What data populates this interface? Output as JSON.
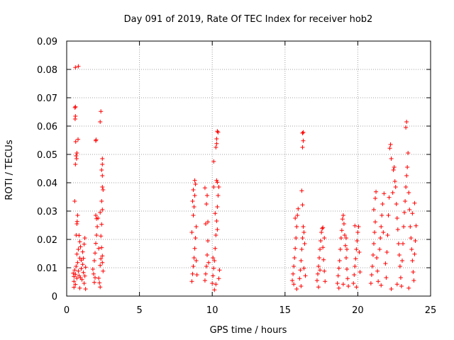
{
  "chart_data": {
    "type": "scatter",
    "title": "Day 091 of 2019, Rate Of TEC Index for receiver hob2",
    "xlabel": "GPS time / hours",
    "ylabel": "ROTI / TECUs",
    "xlim": [
      0,
      25
    ],
    "ylim": [
      0,
      0.09
    ],
    "x_ticks": [
      0,
      5,
      10,
      15,
      20,
      25
    ],
    "y_ticks": [
      0,
      0.01,
      0.02,
      0.03,
      0.04,
      0.05,
      0.06,
      0.07,
      0.08,
      0.09
    ],
    "x_tick_labels": [
      "0",
      "5",
      "10",
      "15",
      "20",
      "25"
    ],
    "y_tick_labels": [
      "0",
      "0.01",
      "0.02",
      "0.03",
      "0.04",
      "0.05",
      "0.06",
      "0.07",
      "0.08",
      "0.09"
    ],
    "grid": true,
    "marker": "+",
    "color": "#ff0000",
    "series": [
      {
        "points": [
          [
            0.45,
            0.0081
          ],
          [
            0.5,
            0.0069
          ],
          [
            0.55,
            0.0092
          ],
          [
            0.6,
            0.0077
          ],
          [
            0.65,
            0.0105
          ],
          [
            0.7,
            0.0063
          ],
          [
            0.75,
            0.0118
          ],
          [
            0.8,
            0.0088
          ],
          [
            0.85,
            0.0072
          ],
          [
            0.9,
            0.0134
          ],
          [
            0.95,
            0.0065
          ],
          [
            1.0,
            0.0097
          ],
          [
            1.05,
            0.0058
          ],
          [
            1.1,
            0.0112
          ],
          [
            1.15,
            0.0083
          ],
          [
            1.2,
            0.0045
          ],
          [
            1.25,
            0.0071
          ],
          [
            1.3,
            0.0102
          ],
          [
            0.5,
            0.0052
          ],
          [
            0.6,
            0.0041
          ],
          [
            0.7,
            0.0148
          ],
          [
            0.8,
            0.0165
          ],
          [
            0.9,
            0.0192
          ],
          [
            1.0,
            0.0127
          ],
          [
            1.1,
            0.0156
          ],
          [
            1.2,
            0.0183
          ],
          [
            1.25,
            0.0205
          ],
          [
            0.65,
            0.0215
          ],
          [
            0.7,
            0.0255
          ],
          [
            0.75,
            0.0285
          ],
          [
            0.55,
            0.0335
          ],
          [
            0.6,
            0.0465
          ],
          [
            0.62,
            0.0545
          ],
          [
            0.65,
            0.0495
          ],
          [
            0.7,
            0.0505
          ],
          [
            0.68,
            0.0485
          ],
          [
            0.58,
            0.0625
          ],
          [
            0.6,
            0.0635
          ],
          [
            0.57,
            0.0665
          ],
          [
            0.6,
            0.0668
          ],
          [
            0.6,
            0.0807
          ],
          [
            0.8,
            0.0811
          ],
          [
            0.78,
            0.0553
          ],
          [
            0.72,
            0.0263
          ],
          [
            0.85,
            0.0214
          ],
          [
            0.95,
            0.0174
          ],
          [
            1.15,
            0.0133
          ],
          [
            0.5,
            0.0031
          ],
          [
            0.9,
            0.0028
          ],
          [
            1.3,
            0.0025
          ],
          [
            1.8,
            0.0095
          ],
          [
            1.85,
            0.0078
          ],
          [
            1.9,
            0.0125
          ],
          [
            1.95,
            0.0152
          ],
          [
            2.0,
            0.0186
          ],
          [
            2.05,
            0.0215
          ],
          [
            2.1,
            0.0245
          ],
          [
            2.15,
            0.0275
          ],
          [
            2.2,
            0.0063
          ],
          [
            2.25,
            0.0047
          ],
          [
            2.3,
            0.0108
          ],
          [
            2.35,
            0.0132
          ],
          [
            2.4,
            0.0171
          ],
          [
            2.45,
            0.0142
          ],
          [
            2.5,
            0.0088
          ],
          [
            2.0,
            0.0285
          ],
          [
            2.05,
            0.0273
          ],
          [
            1.9,
            0.0048
          ],
          [
            2.3,
            0.0032
          ],
          [
            2.35,
            0.0212
          ],
          [
            2.4,
            0.0253
          ],
          [
            2.45,
            0.0305
          ],
          [
            2.4,
            0.0335
          ],
          [
            2.45,
            0.0385
          ],
          [
            2.5,
            0.0375
          ],
          [
            2.45,
            0.0425
          ],
          [
            2.4,
            0.0445
          ],
          [
            2.45,
            0.0465
          ],
          [
            2.45,
            0.0485
          ],
          [
            2.3,
            0.0615
          ],
          [
            2.35,
            0.0652
          ],
          [
            2.0,
            0.0548
          ],
          [
            2.02,
            0.0552
          ],
          [
            2.3,
            0.0295
          ],
          [
            2.2,
            0.0168
          ],
          [
            2.45,
            0.0118
          ],
          [
            1.95,
            0.0065
          ],
          [
            8.6,
            0.0052
          ],
          [
            8.65,
            0.0078
          ],
          [
            8.7,
            0.0105
          ],
          [
            8.75,
            0.0135
          ],
          [
            8.8,
            0.0168
          ],
          [
            8.85,
            0.0205
          ],
          [
            8.9,
            0.0245
          ],
          [
            8.7,
            0.0285
          ],
          [
            8.75,
            0.0315
          ],
          [
            8.8,
            0.0355
          ],
          [
            8.85,
            0.0395
          ],
          [
            8.7,
            0.0375
          ],
          [
            8.8,
            0.0408
          ],
          [
            8.65,
            0.0335
          ],
          [
            8.9,
            0.0125
          ],
          [
            8.95,
            0.0075
          ],
          [
            8.6,
            0.0225
          ],
          [
            9.5,
            0.0055
          ],
          [
            9.55,
            0.0078
          ],
          [
            9.6,
            0.0105
          ],
          [
            9.65,
            0.0145
          ],
          [
            9.7,
            0.0195
          ],
          [
            9.55,
            0.0255
          ],
          [
            9.6,
            0.0325
          ],
          [
            9.65,
            0.0355
          ],
          [
            9.5,
            0.0382
          ],
          [
            9.7,
            0.0262
          ],
          [
            9.75,
            0.0118
          ],
          [
            10.0,
            0.0045
          ],
          [
            10.05,
            0.0072
          ],
          [
            10.1,
            0.0098
          ],
          [
            10.15,
            0.0125
          ],
          [
            10.2,
            0.0168
          ],
          [
            10.25,
            0.0215
          ],
          [
            10.3,
            0.0265
          ],
          [
            10.35,
            0.0315
          ],
          [
            10.4,
            0.0355
          ],
          [
            10.45,
            0.0385
          ],
          [
            10.3,
            0.0408
          ],
          [
            10.35,
            0.0402
          ],
          [
            10.1,
            0.0475
          ],
          [
            10.25,
            0.0525
          ],
          [
            10.3,
            0.0555
          ],
          [
            10.35,
            0.0582
          ],
          [
            10.4,
            0.0578
          ],
          [
            10.3,
            0.0538
          ],
          [
            10.1,
            0.0385
          ],
          [
            10.2,
            0.0292
          ],
          [
            10.25,
            0.0042
          ],
          [
            10.45,
            0.0062
          ],
          [
            10.15,
            0.0022
          ],
          [
            10.5,
            0.0092
          ],
          [
            10.05,
            0.0135
          ],
          [
            10.35,
            0.0235
          ],
          [
            15.5,
            0.0055
          ],
          [
            15.55,
            0.0078
          ],
          [
            15.6,
            0.0105
          ],
          [
            15.65,
            0.0135
          ],
          [
            15.7,
            0.0168
          ],
          [
            15.75,
            0.0205
          ],
          [
            15.8,
            0.0245
          ],
          [
            15.85,
            0.0285
          ],
          [
            15.9,
            0.0308
          ],
          [
            15.7,
            0.0275
          ],
          [
            15.6,
            0.0042
          ],
          [
            15.8,
            0.0025
          ],
          [
            16.0,
            0.0062
          ],
          [
            16.05,
            0.0092
          ],
          [
            16.1,
            0.0125
          ],
          [
            16.15,
            0.0165
          ],
          [
            16.2,
            0.0205
          ],
          [
            16.25,
            0.0245
          ],
          [
            16.3,
            0.0225
          ],
          [
            16.35,
            0.0185
          ],
          [
            16.2,
            0.0322
          ],
          [
            16.15,
            0.0372
          ],
          [
            16.2,
            0.0525
          ],
          [
            16.25,
            0.0548
          ],
          [
            16.2,
            0.0575
          ],
          [
            16.25,
            0.0578
          ],
          [
            16.3,
            0.0098
          ],
          [
            16.1,
            0.0035
          ],
          [
            16.4,
            0.0072
          ],
          [
            17.2,
            0.0055
          ],
          [
            17.25,
            0.0078
          ],
          [
            17.3,
            0.0105
          ],
          [
            17.35,
            0.0135
          ],
          [
            17.4,
            0.0165
          ],
          [
            17.45,
            0.0195
          ],
          [
            17.5,
            0.0225
          ],
          [
            17.55,
            0.0238
          ],
          [
            17.6,
            0.0172
          ],
          [
            17.65,
            0.0128
          ],
          [
            17.7,
            0.0088
          ],
          [
            17.75,
            0.0052
          ],
          [
            17.3,
            0.0032
          ],
          [
            17.6,
            0.0242
          ],
          [
            17.7,
            0.0205
          ],
          [
            17.4,
            0.0092
          ],
          [
            18.6,
            0.0045
          ],
          [
            18.65,
            0.0072
          ],
          [
            18.7,
            0.0098
          ],
          [
            18.75,
            0.0125
          ],
          [
            18.8,
            0.0165
          ],
          [
            18.85,
            0.0205
          ],
          [
            18.9,
            0.0232
          ],
          [
            18.95,
            0.0272
          ],
          [
            19.0,
            0.0285
          ],
          [
            19.05,
            0.0255
          ],
          [
            19.1,
            0.0215
          ],
          [
            19.15,
            0.0178
          ],
          [
            19.2,
            0.0135
          ],
          [
            19.25,
            0.0095
          ],
          [
            19.3,
            0.0062
          ],
          [
            19.35,
            0.0035
          ],
          [
            19.0,
            0.0042
          ],
          [
            18.7,
            0.0028
          ],
          [
            19.2,
            0.0205
          ],
          [
            19.25,
            0.0165
          ],
          [
            19.7,
            0.0045
          ],
          [
            19.75,
            0.0075
          ],
          [
            19.8,
            0.0105
          ],
          [
            19.85,
            0.0132
          ],
          [
            19.9,
            0.0165
          ],
          [
            19.95,
            0.0195
          ],
          [
            20.0,
            0.0225
          ],
          [
            20.05,
            0.0245
          ],
          [
            19.8,
            0.0248
          ],
          [
            20.1,
            0.0155
          ],
          [
            20.15,
            0.0085
          ],
          [
            19.9,
            0.0032
          ],
          [
            20.9,
            0.0045
          ],
          [
            20.95,
            0.0075
          ],
          [
            21.0,
            0.0105
          ],
          [
            21.05,
            0.0145
          ],
          [
            21.1,
            0.0185
          ],
          [
            21.15,
            0.0225
          ],
          [
            21.2,
            0.0262
          ],
          [
            21.1,
            0.0305
          ],
          [
            21.2,
            0.0345
          ],
          [
            21.25,
            0.0368
          ],
          [
            21.3,
            0.0135
          ],
          [
            21.35,
            0.0088
          ],
          [
            21.4,
            0.0052
          ],
          [
            21.5,
            0.0165
          ],
          [
            21.55,
            0.0205
          ],
          [
            21.6,
            0.0245
          ],
          [
            21.65,
            0.0285
          ],
          [
            21.7,
            0.0325
          ],
          [
            21.8,
            0.0362
          ],
          [
            21.75,
            0.0225
          ],
          [
            21.9,
            0.0115
          ],
          [
            21.95,
            0.0065
          ],
          [
            22.0,
            0.0155
          ],
          [
            22.05,
            0.0215
          ],
          [
            22.1,
            0.0285
          ],
          [
            22.15,
            0.0348
          ],
          [
            22.2,
            0.0522
          ],
          [
            22.25,
            0.0535
          ],
          [
            22.3,
            0.0485
          ],
          [
            22.4,
            0.0365
          ],
          [
            22.45,
            0.0445
          ],
          [
            22.5,
            0.0455
          ],
          [
            22.55,
            0.0405
          ],
          [
            22.6,
            0.0385
          ],
          [
            22.65,
            0.0325
          ],
          [
            22.7,
            0.0275
          ],
          [
            22.75,
            0.0235
          ],
          [
            22.8,
            0.0185
          ],
          [
            22.85,
            0.0145
          ],
          [
            22.9,
            0.0105
          ],
          [
            22.95,
            0.0065
          ],
          [
            23.0,
            0.0035
          ],
          [
            23.05,
            0.0125
          ],
          [
            23.1,
            0.0185
          ],
          [
            23.15,
            0.0245
          ],
          [
            23.2,
            0.0295
          ],
          [
            23.25,
            0.0335
          ],
          [
            23.3,
            0.0385
          ],
          [
            23.35,
            0.0425
          ],
          [
            23.4,
            0.0455
          ],
          [
            23.3,
            0.0595
          ],
          [
            23.35,
            0.0615
          ],
          [
            23.45,
            0.0505
          ],
          [
            23.5,
            0.0365
          ],
          [
            23.55,
            0.0305
          ],
          [
            23.6,
            0.0245
          ],
          [
            23.65,
            0.0205
          ],
          [
            23.7,
            0.0165
          ],
          [
            23.75,
            0.0125
          ],
          [
            23.8,
            0.0085
          ],
          [
            23.85,
            0.0055
          ],
          [
            23.9,
            0.0148
          ],
          [
            23.95,
            0.0195
          ],
          [
            24.0,
            0.0248
          ],
          [
            23.75,
            0.0292
          ],
          [
            23.9,
            0.0328
          ],
          [
            22.3,
            0.0025
          ],
          [
            21.6,
            0.0038
          ],
          [
            22.7,
            0.0042
          ],
          [
            23.5,
            0.0028
          ]
        ]
      }
    ]
  }
}
